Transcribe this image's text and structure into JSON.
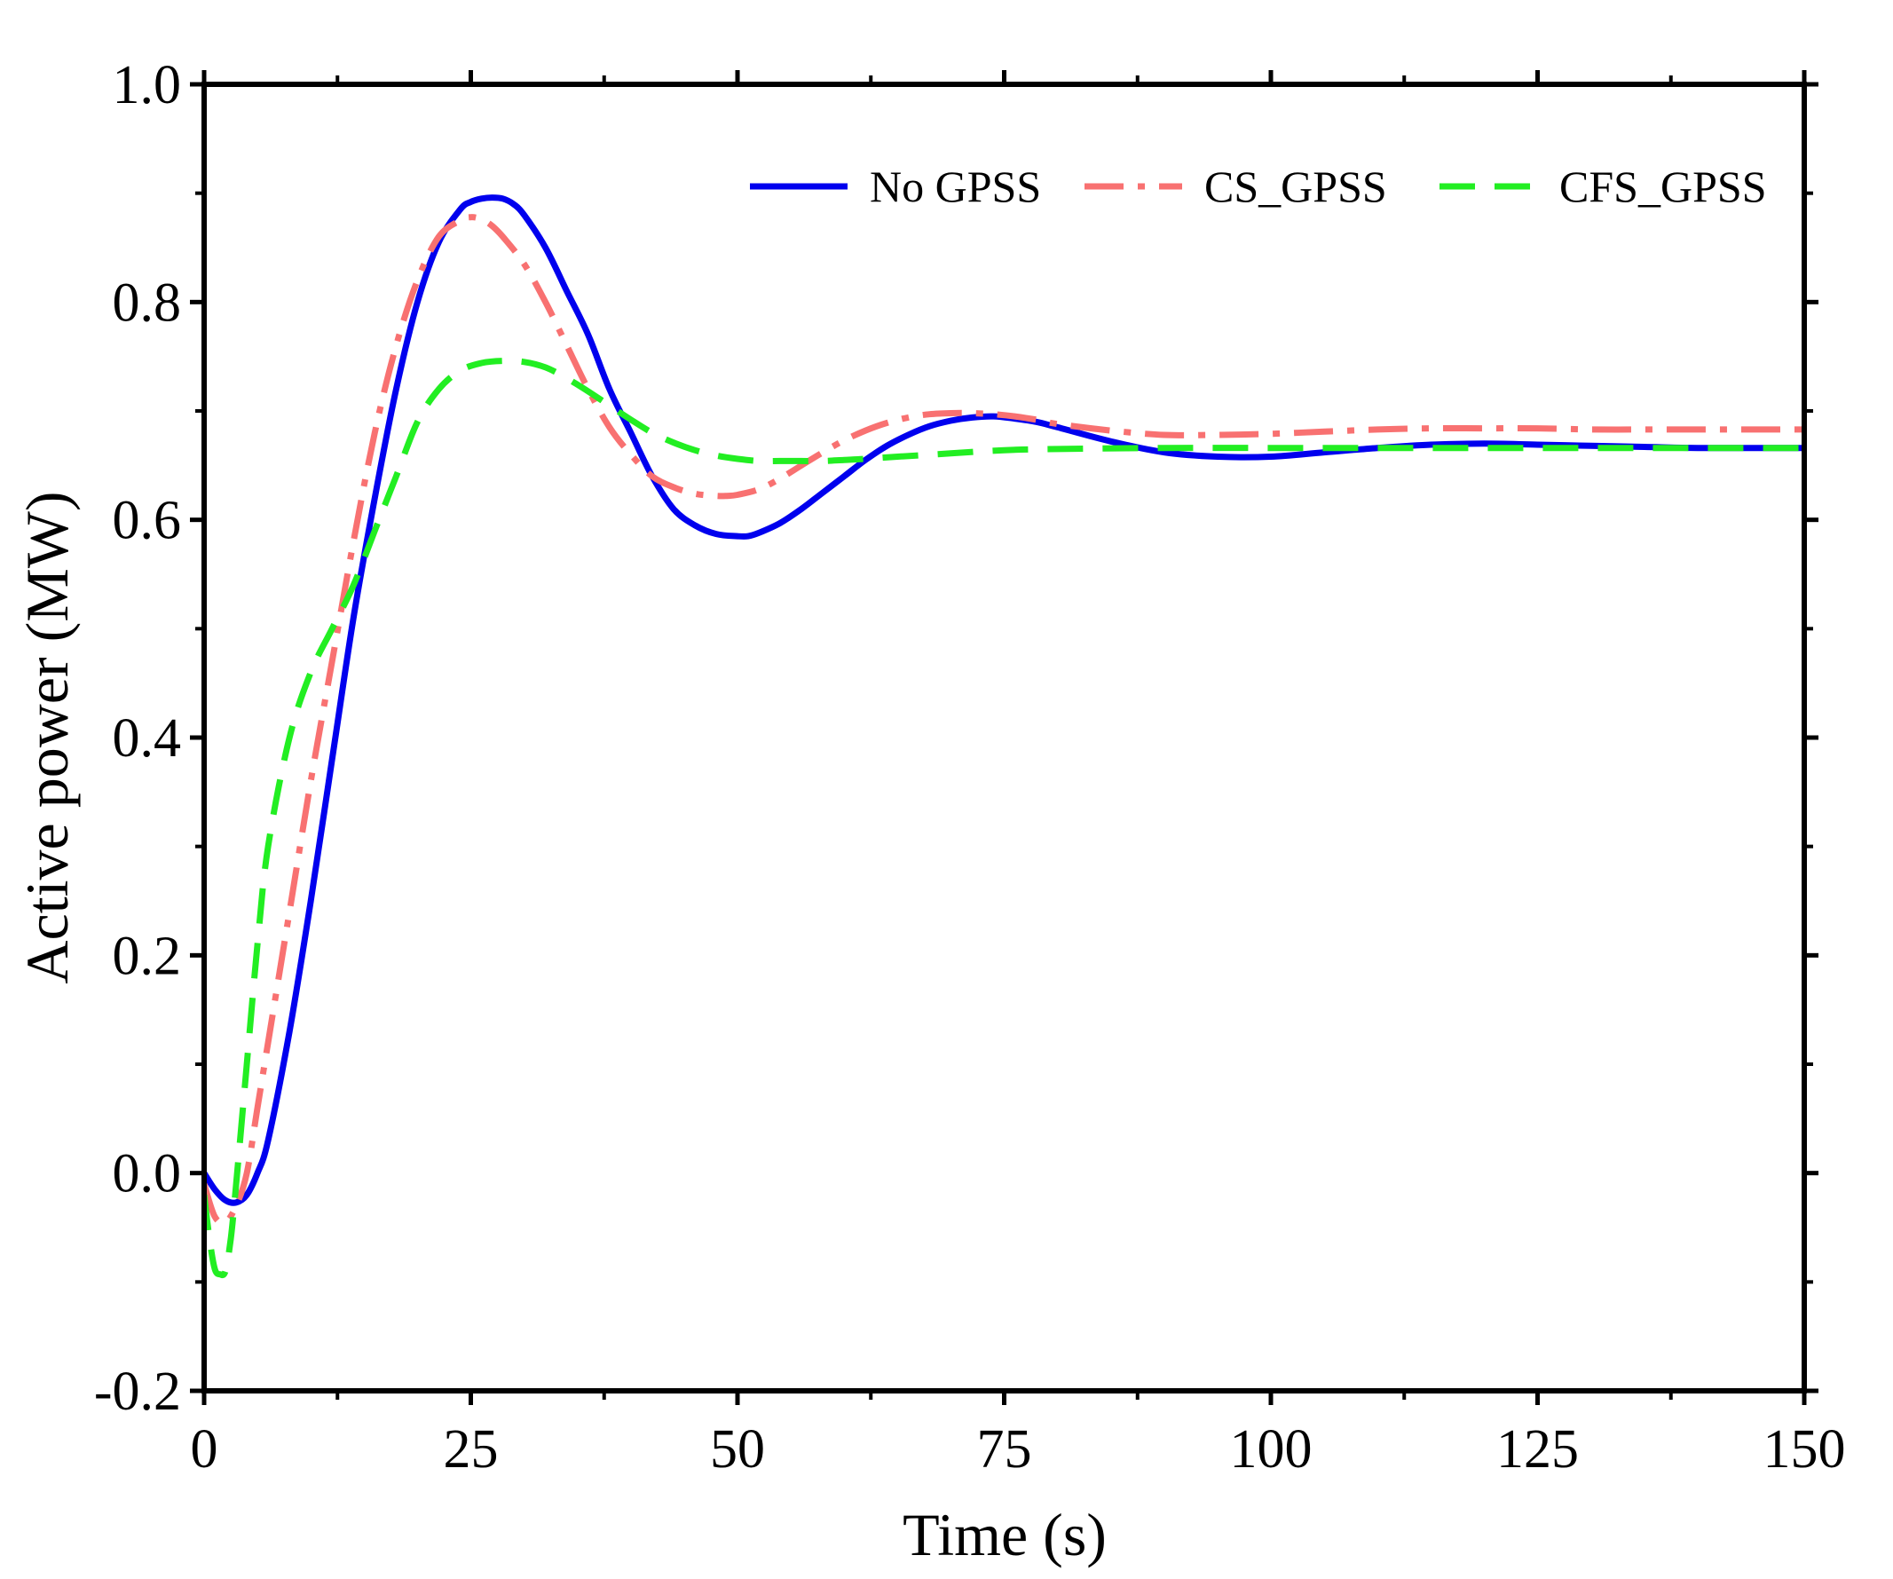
{
  "chart_data": {
    "type": "line",
    "title": "",
    "xlabel": "Time (s)",
    "ylabel": "Active power (MW)",
    "xlim": [
      0,
      150
    ],
    "ylim": [
      -0.2,
      1.0
    ],
    "xticks": [
      0,
      25,
      50,
      75,
      100,
      125,
      150
    ],
    "xtick_labels": [
      "0",
      "25",
      "50",
      "75",
      "100",
      "125",
      "150"
    ],
    "yticks": [
      -0.2,
      0.0,
      0.2,
      0.4,
      0.6,
      0.8,
      1.0
    ],
    "ytick_labels": [
      "-0.2",
      "0.0",
      "0.2",
      "0.4",
      "0.6",
      "0.8",
      "1.0"
    ],
    "grid": false,
    "legend_position": "top-right",
    "series": [
      {
        "name": "No GPSS",
        "color": "#0000ee",
        "style": "solid",
        "x": [
          0,
          1,
          2,
          3,
          4,
          5,
          6,
          8,
          10,
          12,
          14,
          16,
          18,
          20,
          22,
          24,
          25,
          26,
          27,
          28,
          29,
          30,
          32,
          34,
          36,
          38,
          40,
          42,
          44,
          46,
          48,
          50,
          51,
          52,
          54,
          56,
          58,
          60,
          62,
          64,
          66,
          68,
          70,
          72,
          74,
          76,
          78,
          80,
          85,
          90,
          95,
          100,
          105,
          110,
          115,
          120,
          125,
          130,
          135,
          140,
          145,
          150
        ],
        "y": [
          0.0,
          -0.015,
          -0.025,
          -0.027,
          -0.02,
          0.0,
          0.03,
          0.13,
          0.25,
          0.38,
          0.51,
          0.62,
          0.72,
          0.8,
          0.855,
          0.885,
          0.892,
          0.895,
          0.896,
          0.895,
          0.89,
          0.88,
          0.85,
          0.81,
          0.77,
          0.72,
          0.68,
          0.64,
          0.61,
          0.595,
          0.587,
          0.585,
          0.585,
          0.588,
          0.597,
          0.61,
          0.625,
          0.64,
          0.655,
          0.668,
          0.678,
          0.686,
          0.691,
          0.694,
          0.695,
          0.693,
          0.69,
          0.685,
          0.672,
          0.662,
          0.658,
          0.658,
          0.662,
          0.666,
          0.669,
          0.67,
          0.669,
          0.668,
          0.667,
          0.666,
          0.666,
          0.666
        ]
      },
      {
        "name": "CS_GPSS",
        "color": "#f87171",
        "style": "dashdot",
        "x": [
          0,
          1,
          2,
          3,
          4,
          5,
          6,
          8,
          10,
          12,
          14,
          16,
          18,
          20,
          22,
          24,
          25,
          26,
          27,
          28,
          30,
          32,
          34,
          36,
          38,
          40,
          42,
          44,
          46,
          48,
          49,
          50,
          52,
          54,
          56,
          58,
          60,
          62,
          64,
          66,
          68,
          70,
          72,
          74,
          76,
          78,
          80,
          85,
          90,
          95,
          100,
          105,
          110,
          115,
          120,
          125,
          130,
          135,
          140,
          145,
          150
        ],
        "y": [
          -0.01,
          -0.04,
          -0.045,
          -0.03,
          0.0,
          0.06,
          0.12,
          0.24,
          0.36,
          0.47,
          0.58,
          0.68,
          0.76,
          0.82,
          0.86,
          0.875,
          0.878,
          0.876,
          0.87,
          0.86,
          0.835,
          0.8,
          0.76,
          0.72,
          0.685,
          0.66,
          0.64,
          0.63,
          0.624,
          0.622,
          0.622,
          0.623,
          0.628,
          0.638,
          0.65,
          0.662,
          0.673,
          0.682,
          0.689,
          0.694,
          0.697,
          0.698,
          0.698,
          0.697,
          0.695,
          0.692,
          0.688,
          0.682,
          0.678,
          0.678,
          0.679,
          0.681,
          0.683,
          0.684,
          0.684,
          0.684,
          0.683,
          0.683,
          0.683,
          0.683,
          0.683
        ]
      },
      {
        "name": "CFS_GPSS",
        "color": "#22ee22",
        "style": "dashed",
        "x": [
          0,
          0.5,
          1,
          1.5,
          2,
          2.5,
          3,
          4,
          5,
          6,
          8,
          10,
          12,
          14,
          16,
          18,
          20,
          22,
          24,
          26,
          28,
          30,
          32,
          34,
          36,
          38,
          40,
          42,
          44,
          46,
          48,
          50,
          52,
          54,
          56,
          58,
          60,
          62,
          65,
          70,
          75,
          80,
          90,
          100,
          110,
          120,
          130,
          140,
          150
        ],
        "y": [
          -0.02,
          -0.06,
          -0.088,
          -0.093,
          -0.09,
          -0.06,
          -0.01,
          0.1,
          0.21,
          0.3,
          0.4,
          0.46,
          0.5,
          0.54,
          0.59,
          0.64,
          0.69,
          0.72,
          0.737,
          0.744,
          0.746,
          0.745,
          0.74,
          0.73,
          0.718,
          0.705,
          0.692,
          0.68,
          0.671,
          0.664,
          0.659,
          0.656,
          0.654,
          0.654,
          0.654,
          0.654,
          0.655,
          0.656,
          0.658,
          0.661,
          0.664,
          0.665,
          0.666,
          0.666,
          0.666,
          0.666,
          0.666,
          0.666,
          0.666
        ]
      }
    ]
  }
}
